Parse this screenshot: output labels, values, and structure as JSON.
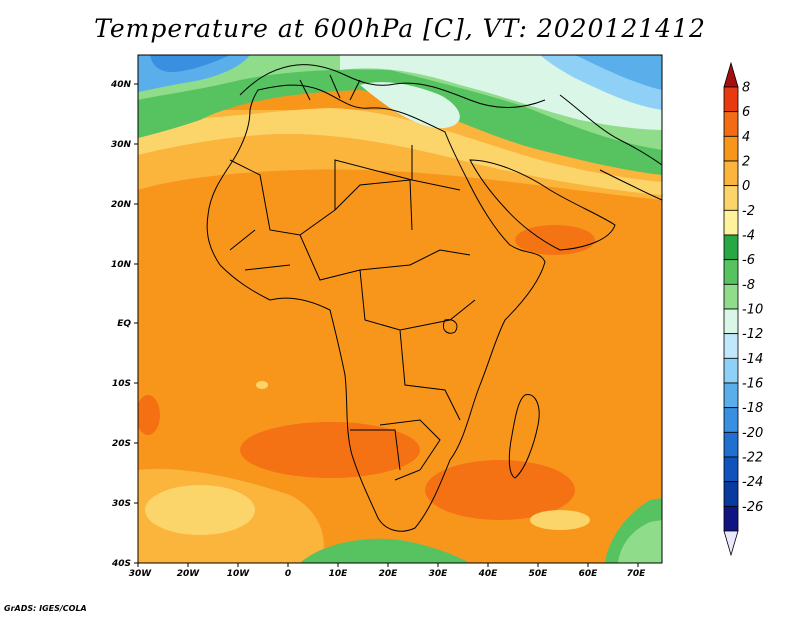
{
  "title": "Temperature at 600hPa [C], VT: 2020121412",
  "credit": "GrADS: IGES/COLA",
  "map": {
    "lat_labels": [
      "40N",
      "30N",
      "20N",
      "10N",
      "EQ",
      "10S",
      "20S",
      "30S",
      "40S"
    ],
    "lon_labels": [
      "30W",
      "20W",
      "10W",
      "0",
      "10E",
      "20E",
      "30E",
      "40E",
      "50E",
      "60E",
      "70E"
    ],
    "lat_range": [
      -40,
      45
    ],
    "lon_range": [
      -30,
      75
    ]
  },
  "colorbar": {
    "labels": [
      "8",
      "6",
      "4",
      "2",
      "0",
      "-2",
      "-4",
      "-6",
      "-8",
      "-10",
      "-12",
      "-14",
      "-16",
      "-18",
      "-20",
      "-22",
      "-24",
      "-26"
    ],
    "colors": [
      "#a50f0f",
      "#e83a10",
      "#f36b13",
      "#f8961c",
      "#fbb43c",
      "#fbd46a",
      "#fff29d",
      "#27a844",
      "#56c260",
      "#8fdc8b",
      "#d9f6e7",
      "#c0e7fb",
      "#8ed0f6",
      "#5aafea",
      "#3990e0",
      "#2170cf",
      "#1153bd",
      "#083b9e",
      "#101582",
      "#e8e8ff"
    ]
  }
}
